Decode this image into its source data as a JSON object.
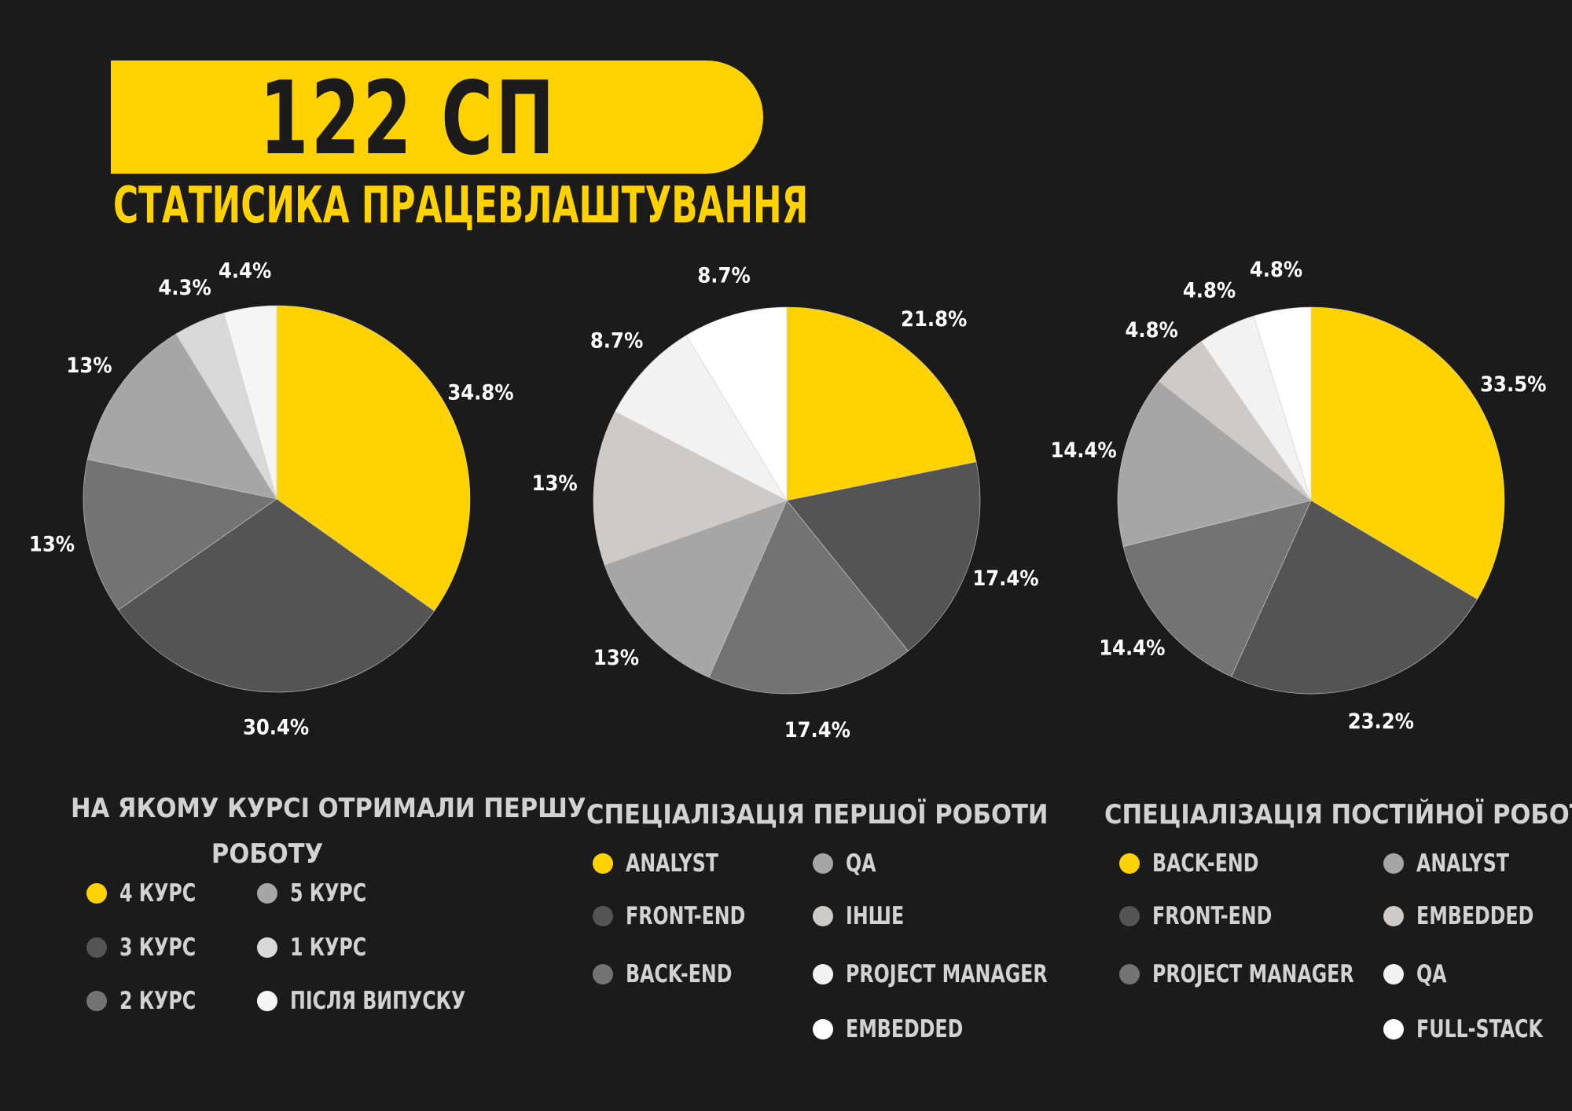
{
  "header": {
    "title": "122 СП",
    "subtitle": "СТАТИСИКА ПРАЦЕВЛАШТУВАННЯ"
  },
  "colors": {
    "background": "#1b1b1b",
    "accent": "#ffd200"
  },
  "chart_data": [
    {
      "type": "pie",
      "title": "НА ЯКОМУ КУРСІ ОТРИМАЛИ ПЕРШУ РОБОТУ",
      "title_lines": [
        "НА ЯКОМУ КУРСІ ОТРИМАЛИ ПЕРШУ",
        "РОБОТУ"
      ],
      "categories": [
        "4 КУРС",
        "3 КУРС",
        "2 КУРС",
        "5 КУРС",
        "1 КУРС",
        "ПІСЛЯ ВИПУСКУ"
      ],
      "values": [
        34.8,
        30.4,
        13,
        13,
        4.3,
        4.4
      ],
      "labels": [
        "34.8%",
        "30.4%",
        "13%",
        "13%",
        "4.3%",
        "4.4%"
      ],
      "colors": [
        "#ffd200",
        "#545454",
        "#737373",
        "#a6a6a6",
        "#d9d9d9",
        "#f5f5f5"
      ],
      "legend_columns": [
        [
          "4 КУРС",
          "3 КУРС",
          "2 КУРС"
        ],
        [
          "5 КУРС",
          "1 КУРС",
          "ПІСЛЯ ВИПУСКУ"
        ]
      ]
    },
    {
      "type": "pie",
      "title": "СПЕЦІАЛІЗАЦІЯ ПЕРШОЇ РОБОТИ",
      "title_lines": [
        "СПЕЦІАЛІЗАЦІЯ ПЕРШОЇ РОБОТИ"
      ],
      "categories": [
        "ANALYST",
        "FRONT-END",
        "BACK-END",
        "QA",
        "ІНШЕ",
        "PROJECT MANAGER",
        "EMBEDDED"
      ],
      "values": [
        21.8,
        17.4,
        17.4,
        13,
        13,
        8.7,
        8.7
      ],
      "labels": [
        "21.8%",
        "17.4%",
        "17.4%",
        "13%",
        "13%",
        "8.7%",
        "8.7%"
      ],
      "colors": [
        "#ffd200",
        "#545454",
        "#737373",
        "#a6a6a6",
        "#cdcaca",
        "#f2f2f2",
        "#ffffff"
      ],
      "legend_columns": [
        [
          "ANALYST",
          "FRONT-END",
          "BACK-END"
        ],
        [
          "QA",
          "ІНШЕ",
          "PROJECT MANAGER",
          "EMBEDDED"
        ]
      ]
    },
    {
      "type": "pie",
      "title": "СПЕЦІАЛІЗАЦІЯ ПОСТІЙНОЇ РОБОТИ",
      "title_lines": [
        "СПЕЦІАЛІЗАЦІЯ ПОСТІЙНОЇ РОБОТИ"
      ],
      "categories": [
        "BACK-END",
        "FRONT-END",
        "PROJECT MANAGER",
        "ANALYST",
        "EMBEDDED",
        "QA",
        "FULL-STACK"
      ],
      "values": [
        33.5,
        23.2,
        14.4,
        14.4,
        4.8,
        4.8,
        4.8
      ],
      "labels": [
        "33.5%",
        "23.2%",
        "14.4%",
        "14.4%",
        "4.8%",
        "4.8%",
        "4.8%"
      ],
      "colors": [
        "#ffd200",
        "#545454",
        "#737373",
        "#a6a6a6",
        "#cdcaca",
        "#f2f2f2",
        "#ffffff"
      ],
      "legend_columns": [
        [
          "BACK-END",
          "FRONT-END",
          "PROJECT MANAGER"
        ],
        [
          "ANALYST",
          "EMBEDDED",
          "QA",
          "FULL-STACK"
        ]
      ]
    }
  ]
}
